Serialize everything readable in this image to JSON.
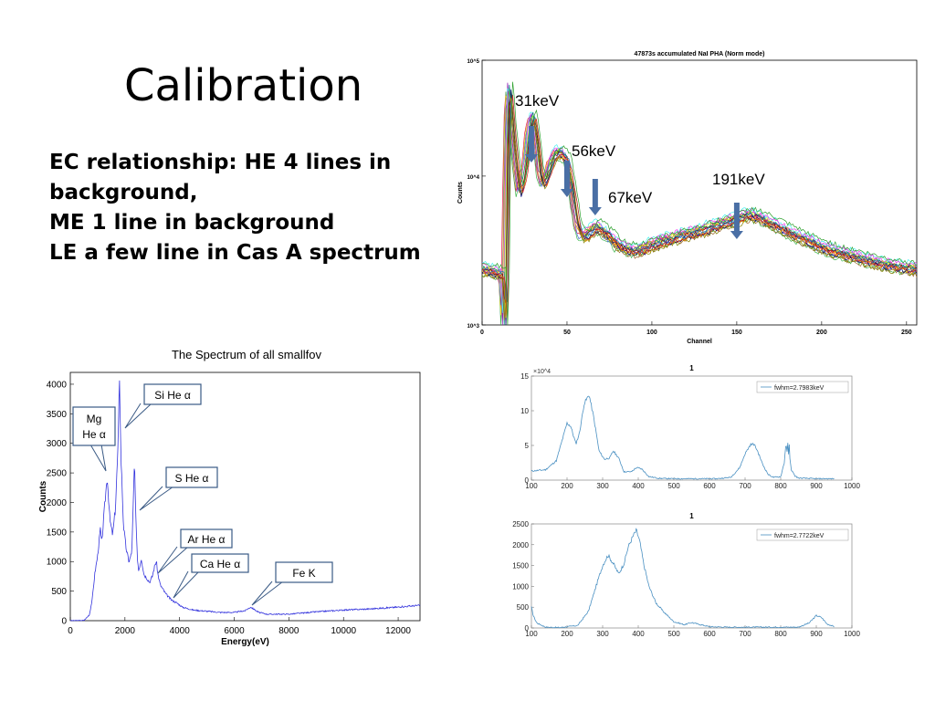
{
  "slide": {
    "title": "Calibration",
    "bullets": [
      "EC relationship: HE 4 lines in",
      "background,",
      "ME 1 line in background",
      " LE a few line in Cas A spectrum"
    ]
  },
  "chart_data": [
    {
      "id": "nai-pha",
      "type": "line",
      "title": "47873s accumulated NaI PHA (Norm mode)",
      "xlabel": "Channel",
      "ylabel": "Counts",
      "xlim": [
        0,
        256
      ],
      "ylim": [
        1000,
        60000
      ],
      "yscale": "log",
      "xticks": [
        0,
        50,
        100,
        150,
        200,
        250
      ],
      "yticks": [
        {
          "value": 1000,
          "label": "10^3"
        },
        {
          "value": 10000,
          "label": "10^4"
        },
        {
          "value": 100000,
          "label": "10^5"
        }
      ],
      "x": [
        0,
        8,
        12,
        13,
        14,
        16,
        18,
        20,
        22,
        24,
        26,
        28,
        30,
        32,
        34,
        36,
        38,
        40,
        42,
        44,
        46,
        48,
        50,
        52,
        54,
        56,
        58,
        60,
        62,
        64,
        66,
        68,
        70,
        75,
        80,
        85,
        90,
        95,
        100,
        110,
        120,
        130,
        140,
        150,
        155,
        158,
        162,
        170,
        180,
        190,
        200,
        210,
        220,
        230,
        240,
        250,
        256
      ],
      "series_base": [
        2400,
        2300,
        2200,
        800,
        2000,
        40000,
        20000,
        12000,
        8000,
        9500,
        13000,
        22000,
        26000,
        18000,
        11000,
        9000,
        10000,
        12000,
        13500,
        14500,
        14500,
        14000,
        13000,
        10000,
        7000,
        5000,
        4200,
        4000,
        4100,
        4300,
        4500,
        4600,
        4500,
        4000,
        3500,
        3300,
        3200,
        3300,
        3500,
        3800,
        4100,
        4400,
        4800,
        5200,
        5500,
        5600,
        5400,
        4900,
        4300,
        3800,
        3400,
        3100,
        2900,
        2700,
        2550,
        2450,
        2400
      ],
      "series_count": 18,
      "annotations": [
        {
          "text": "31keV",
          "x": 29
        },
        {
          "text": "56keV",
          "x": 50
        },
        {
          "text": "67keV",
          "x": 65
        },
        {
          "text": "191keV",
          "x": 150
        }
      ]
    },
    {
      "id": "smallfov",
      "type": "line",
      "title": "The Spectrum of all smallfov",
      "xlabel": "Energy(eV)",
      "ylabel": "Counts",
      "xlim": [
        0,
        12800
      ],
      "ylim": [
        0,
        4200
      ],
      "xticks": [
        0,
        2000,
        4000,
        6000,
        8000,
        10000,
        12000
      ],
      "yticks": [
        0,
        500,
        1000,
        1500,
        2000,
        2500,
        3000,
        3500,
        4000
      ],
      "x": [
        0,
        500,
        700,
        800,
        900,
        1000,
        1100,
        1150,
        1250,
        1350,
        1450,
        1550,
        1650,
        1750,
        1800,
        1850,
        1950,
        2050,
        2150,
        2250,
        2300,
        2350,
        2400,
        2450,
        2500,
        2600,
        2700,
        2800,
        2900,
        3000,
        3100,
        3150,
        3200,
        3300,
        3500,
        3700,
        3900,
        4100,
        4500,
        5000,
        5500,
        6000,
        6400,
        6600,
        6700,
        6900,
        7200,
        8000,
        9000,
        10000,
        11000,
        12000,
        12800
      ],
      "y": [
        0,
        5,
        100,
        350,
        800,
        1100,
        1550,
        1300,
        1900,
        2450,
        1700,
        1450,
        1900,
        3000,
        4150,
        2800,
        1600,
        1200,
        1000,
        1150,
        1900,
        2700,
        1700,
        1100,
        850,
        1050,
        780,
        720,
        650,
        750,
        950,
        1000,
        800,
        600,
        450,
        350,
        300,
        230,
        180,
        160,
        140,
        140,
        170,
        230,
        200,
        140,
        110,
        110,
        150,
        180,
        200,
        230,
        260
      ],
      "annotations": [
        "Mg\nHe α",
        "Si He α",
        "S He α",
        "Ar He α",
        "Ca He α",
        "Fe K"
      ]
    },
    {
      "id": "fwhm1",
      "type": "line",
      "title": "1",
      "exponent_label": "×10^4",
      "legend": "fwhm=2.7983keV",
      "legend_position": "top-right",
      "color": "#4a90c2",
      "xlim": [
        100,
        1000
      ],
      "ylim": [
        0,
        15
      ],
      "xticks": [
        100,
        200,
        300,
        400,
        500,
        600,
        700,
        800,
        900,
        1000
      ],
      "yticks": [
        0,
        5,
        10,
        15
      ],
      "x": [
        100,
        140,
        170,
        185,
        200,
        210,
        225,
        235,
        248,
        262,
        275,
        290,
        305,
        320,
        330,
        345,
        360,
        380,
        395,
        410,
        430,
        460,
        500,
        560,
        620,
        660,
        685,
        700,
        715,
        725,
        735,
        750,
        765,
        780,
        800,
        810,
        815,
        818,
        820,
        822,
        824,
        826,
        830,
        840,
        850,
        900,
        950
      ],
      "y": [
        1.3,
        1.5,
        2.8,
        5.5,
        8.2,
        7.8,
        5.2,
        6.8,
        11,
        12.3,
        9,
        4.2,
        3.0,
        3.2,
        4.2,
        3.2,
        1.2,
        1.2,
        1.8,
        1.6,
        0.5,
        0.25,
        0.2,
        0.2,
        0.2,
        0.4,
        1.8,
        3.8,
        5.1,
        5.2,
        4.2,
        2.2,
        0.8,
        0.4,
        0.5,
        2.5,
        5.5,
        4.0,
        5.2,
        3.8,
        5.0,
        3.0,
        1.5,
        0.6,
        0.3,
        0.2,
        0.2
      ]
    },
    {
      "id": "fwhm2",
      "type": "line",
      "title": "1",
      "legend": "fwhm=2.7722keV",
      "legend_position": "top-right",
      "color": "#4a90c2",
      "xlim": [
        100,
        1000
      ],
      "ylim": [
        0,
        2500
      ],
      "xticks": [
        100,
        200,
        300,
        400,
        500,
        600,
        700,
        800,
        900,
        1000
      ],
      "yticks": [
        0,
        500,
        1000,
        1500,
        2000,
        2500
      ],
      "x": [
        100,
        105,
        115,
        140,
        180,
        230,
        260,
        285,
        300,
        315,
        330,
        345,
        360,
        372,
        385,
        395,
        405,
        415,
        430,
        450,
        470,
        500,
        530,
        550,
        570,
        600,
        650,
        700,
        750,
        800,
        850,
        880,
        900,
        915,
        930,
        950
      ],
      "y": [
        500,
        300,
        120,
        20,
        10,
        60,
        400,
        1100,
        1500,
        1750,
        1550,
        1300,
        1550,
        1950,
        2200,
        2350,
        2050,
        1550,
        1000,
        600,
        400,
        150,
        80,
        130,
        90,
        30,
        20,
        20,
        20,
        20,
        20,
        120,
        300,
        250,
        100,
        30
      ]
    }
  ]
}
